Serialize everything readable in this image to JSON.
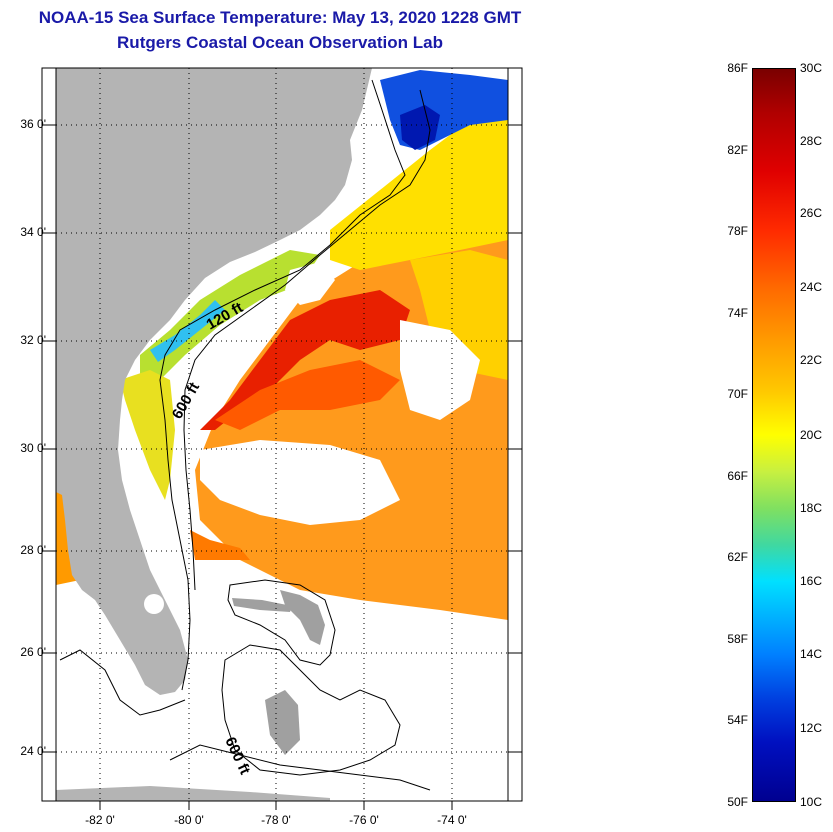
{
  "header": {
    "title_line1": "NOAA-15 Sea Surface Temperature:  May 13, 2020 1228 GMT",
    "title_line2": "Rutgers Coastal Ocean Observation Lab"
  },
  "map": {
    "lat_labels": [
      "36 0'",
      "34 0'",
      "32 0'",
      "30 0'",
      "28 0'",
      "26 0'",
      "24 0'"
    ],
    "lon_labels": [
      "-82 0'",
      "-80 0'",
      "-78 0'",
      "-76 0'",
      "-74 0'"
    ],
    "contour_labels": [
      "120 ft",
      "600 ft",
      "600 ft"
    ]
  },
  "colorbar": {
    "fahrenheit_labels": [
      "86F",
      "82F",
      "78F",
      "74F",
      "70F",
      "66F",
      "62F",
      "58F",
      "54F",
      "50F"
    ],
    "celsius_labels": [
      "30C",
      "28C",
      "26C",
      "24C",
      "22C",
      "20C",
      "18C",
      "16C",
      "14C",
      "12C",
      "10C"
    ]
  },
  "colors": {
    "title": "#1a1aa8",
    "land": "#b4b4b4",
    "water_missing": "#ffffff"
  }
}
